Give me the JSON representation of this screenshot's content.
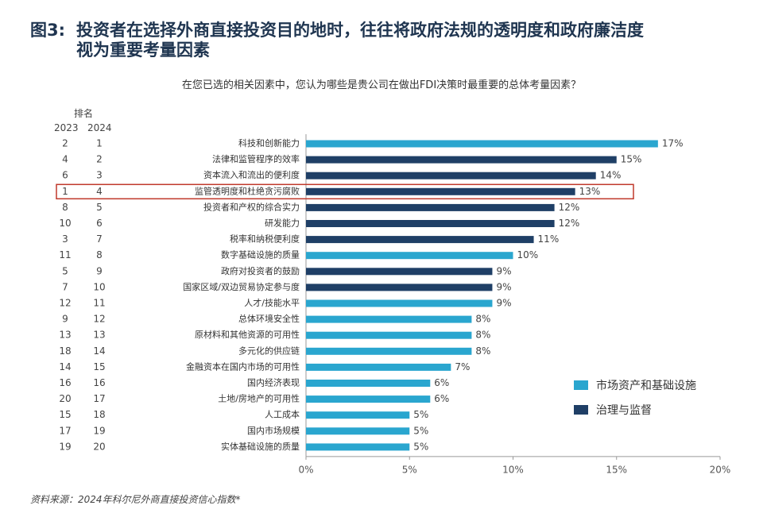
{
  "title_number": "图3:",
  "title_line1": "投资者在选择外商直接投资目的地时，往往将政府法规的透明度和政府廉洁度",
  "title_line2": "视为重要考量因素",
  "subtitle": "在您已选的相关因素中，您认为哪些是贵公司在做出FDI决策时最重要的总体考量因素？",
  "rank_header": "排名",
  "rank_year_2023": "2023",
  "rank_year_2024": "2024",
  "legend": [
    {
      "label": "市场资产和基础设施",
      "color": "#2aa6cf"
    },
    {
      "label": "治理与监督",
      "color": "#1f3f66"
    }
  ],
  "source": "资料来源：2024年科尔尼外商直接投资信心指数*",
  "colors": {
    "market": "#2aa6cf",
    "governance": "#1f3f66",
    "highlight": "#c0392b",
    "axis": "#999999"
  },
  "chart_data": {
    "type": "bar",
    "orientation": "horizontal",
    "xlim": [
      0,
      20
    ],
    "xticks": [
      "0%",
      "5%",
      "10%",
      "15%",
      "20%"
    ],
    "tick_values": [
      0,
      5,
      10,
      15,
      20
    ],
    "highlighted_category": "监管透明度和杜绝贪污腐败",
    "rows": [
      {
        "rank2023": "2",
        "rank2024": "1",
        "category": "科技和创新能力",
        "value": 17,
        "label": "17%",
        "group": "market"
      },
      {
        "rank2023": "4",
        "rank2024": "2",
        "category": "法律和监管程序的效率",
        "value": 15,
        "label": "15%",
        "group": "governance"
      },
      {
        "rank2023": "6",
        "rank2024": "3",
        "category": "资本流入和流出的便利度",
        "value": 14,
        "label": "14%",
        "group": "governance"
      },
      {
        "rank2023": "1",
        "rank2024": "4",
        "category": "监管透明度和杜绝贪污腐败",
        "value": 13,
        "label": "13%",
        "group": "governance"
      },
      {
        "rank2023": "8",
        "rank2024": "5",
        "category": "投资者和产权的综合实力",
        "value": 12,
        "label": "12%",
        "group": "governance"
      },
      {
        "rank2023": "10",
        "rank2024": "6",
        "category": "研发能力",
        "value": 12,
        "label": "12%",
        "group": "governance"
      },
      {
        "rank2023": "3",
        "rank2024": "7",
        "category": "税率和纳税便利度",
        "value": 11,
        "label": "11%",
        "group": "governance"
      },
      {
        "rank2023": "11",
        "rank2024": "8",
        "category": "数字基础设施的质量",
        "value": 10,
        "label": "10%",
        "group": "market"
      },
      {
        "rank2023": "5",
        "rank2024": "9",
        "category": "政府对投资者的鼓励",
        "value": 9,
        "label": "9%",
        "group": "governance"
      },
      {
        "rank2023": "7",
        "rank2024": "10",
        "category": "国家区域/双边贸易协定参与度",
        "value": 9,
        "label": "9%",
        "group": "governance"
      },
      {
        "rank2023": "12",
        "rank2024": "11",
        "category": "人才/技能水平",
        "value": 9,
        "label": "9%",
        "group": "market"
      },
      {
        "rank2023": "9",
        "rank2024": "12",
        "category": "总体环境安全性",
        "value": 8,
        "label": "8%",
        "group": "market"
      },
      {
        "rank2023": "13",
        "rank2024": "13",
        "category": "原材料和其他资源的可用性",
        "value": 8,
        "label": "8%",
        "group": "market"
      },
      {
        "rank2023": "18",
        "rank2024": "14",
        "category": "多元化的供应链",
        "value": 8,
        "label": "8%",
        "group": "market"
      },
      {
        "rank2023": "14",
        "rank2024": "15",
        "category": "金融资本在国内市场的可用性",
        "value": 7,
        "label": "7%",
        "group": "market"
      },
      {
        "rank2023": "16",
        "rank2024": "16",
        "category": "国内经济表现",
        "value": 6,
        "label": "6%",
        "group": "market"
      },
      {
        "rank2023": "20",
        "rank2024": "17",
        "category": "土地/房地产的可用性",
        "value": 6,
        "label": "6%",
        "group": "market"
      },
      {
        "rank2023": "15",
        "rank2024": "18",
        "category": "人工成本",
        "value": 5,
        "label": "5%",
        "group": "market"
      },
      {
        "rank2023": "17",
        "rank2024": "19",
        "category": "国内市场规模",
        "value": 5,
        "label": "5%",
        "group": "market"
      },
      {
        "rank2023": "19",
        "rank2024": "20",
        "category": "实体基础设施的质量",
        "value": 5,
        "label": "5%",
        "group": "market"
      }
    ]
  }
}
